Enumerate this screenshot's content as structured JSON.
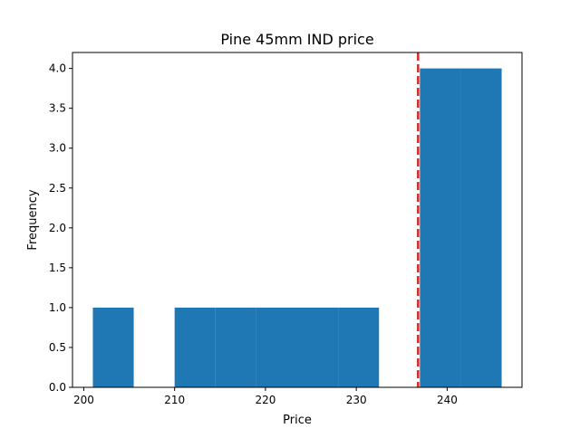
{
  "chart_data": {
    "type": "bar",
    "title": "Pine 45mm IND price",
    "xlabel": "Price",
    "ylabel": "Frequency",
    "xlim": [
      198.76,
      248.24
    ],
    "ylim": [
      0,
      4.2
    ],
    "xticks": [
      200,
      210,
      220,
      230,
      240
    ],
    "yticks": [
      0.0,
      0.5,
      1.0,
      1.5,
      2.0,
      2.5,
      3.0,
      3.5,
      4.0
    ],
    "xtick_labels": [
      "200",
      "210",
      "220",
      "230",
      "240"
    ],
    "ytick_labels": [
      "0.0",
      "0.5",
      "1.0",
      "1.5",
      "2.0",
      "2.5",
      "3.0",
      "3.5",
      "4.0"
    ],
    "bin_edges": [
      201.0,
      205.5,
      210.0,
      214.5,
      219.0,
      223.5,
      228.0,
      232.5,
      237.0,
      241.5,
      246.0
    ],
    "counts": [
      1,
      0,
      1,
      1,
      1,
      1,
      1,
      0,
      4,
      4
    ],
    "reference_line": {
      "x": 236.8,
      "style": "dashed"
    },
    "grid": false,
    "colors": {
      "bar": "#1f77b4",
      "reference_line": "#d62728"
    }
  }
}
